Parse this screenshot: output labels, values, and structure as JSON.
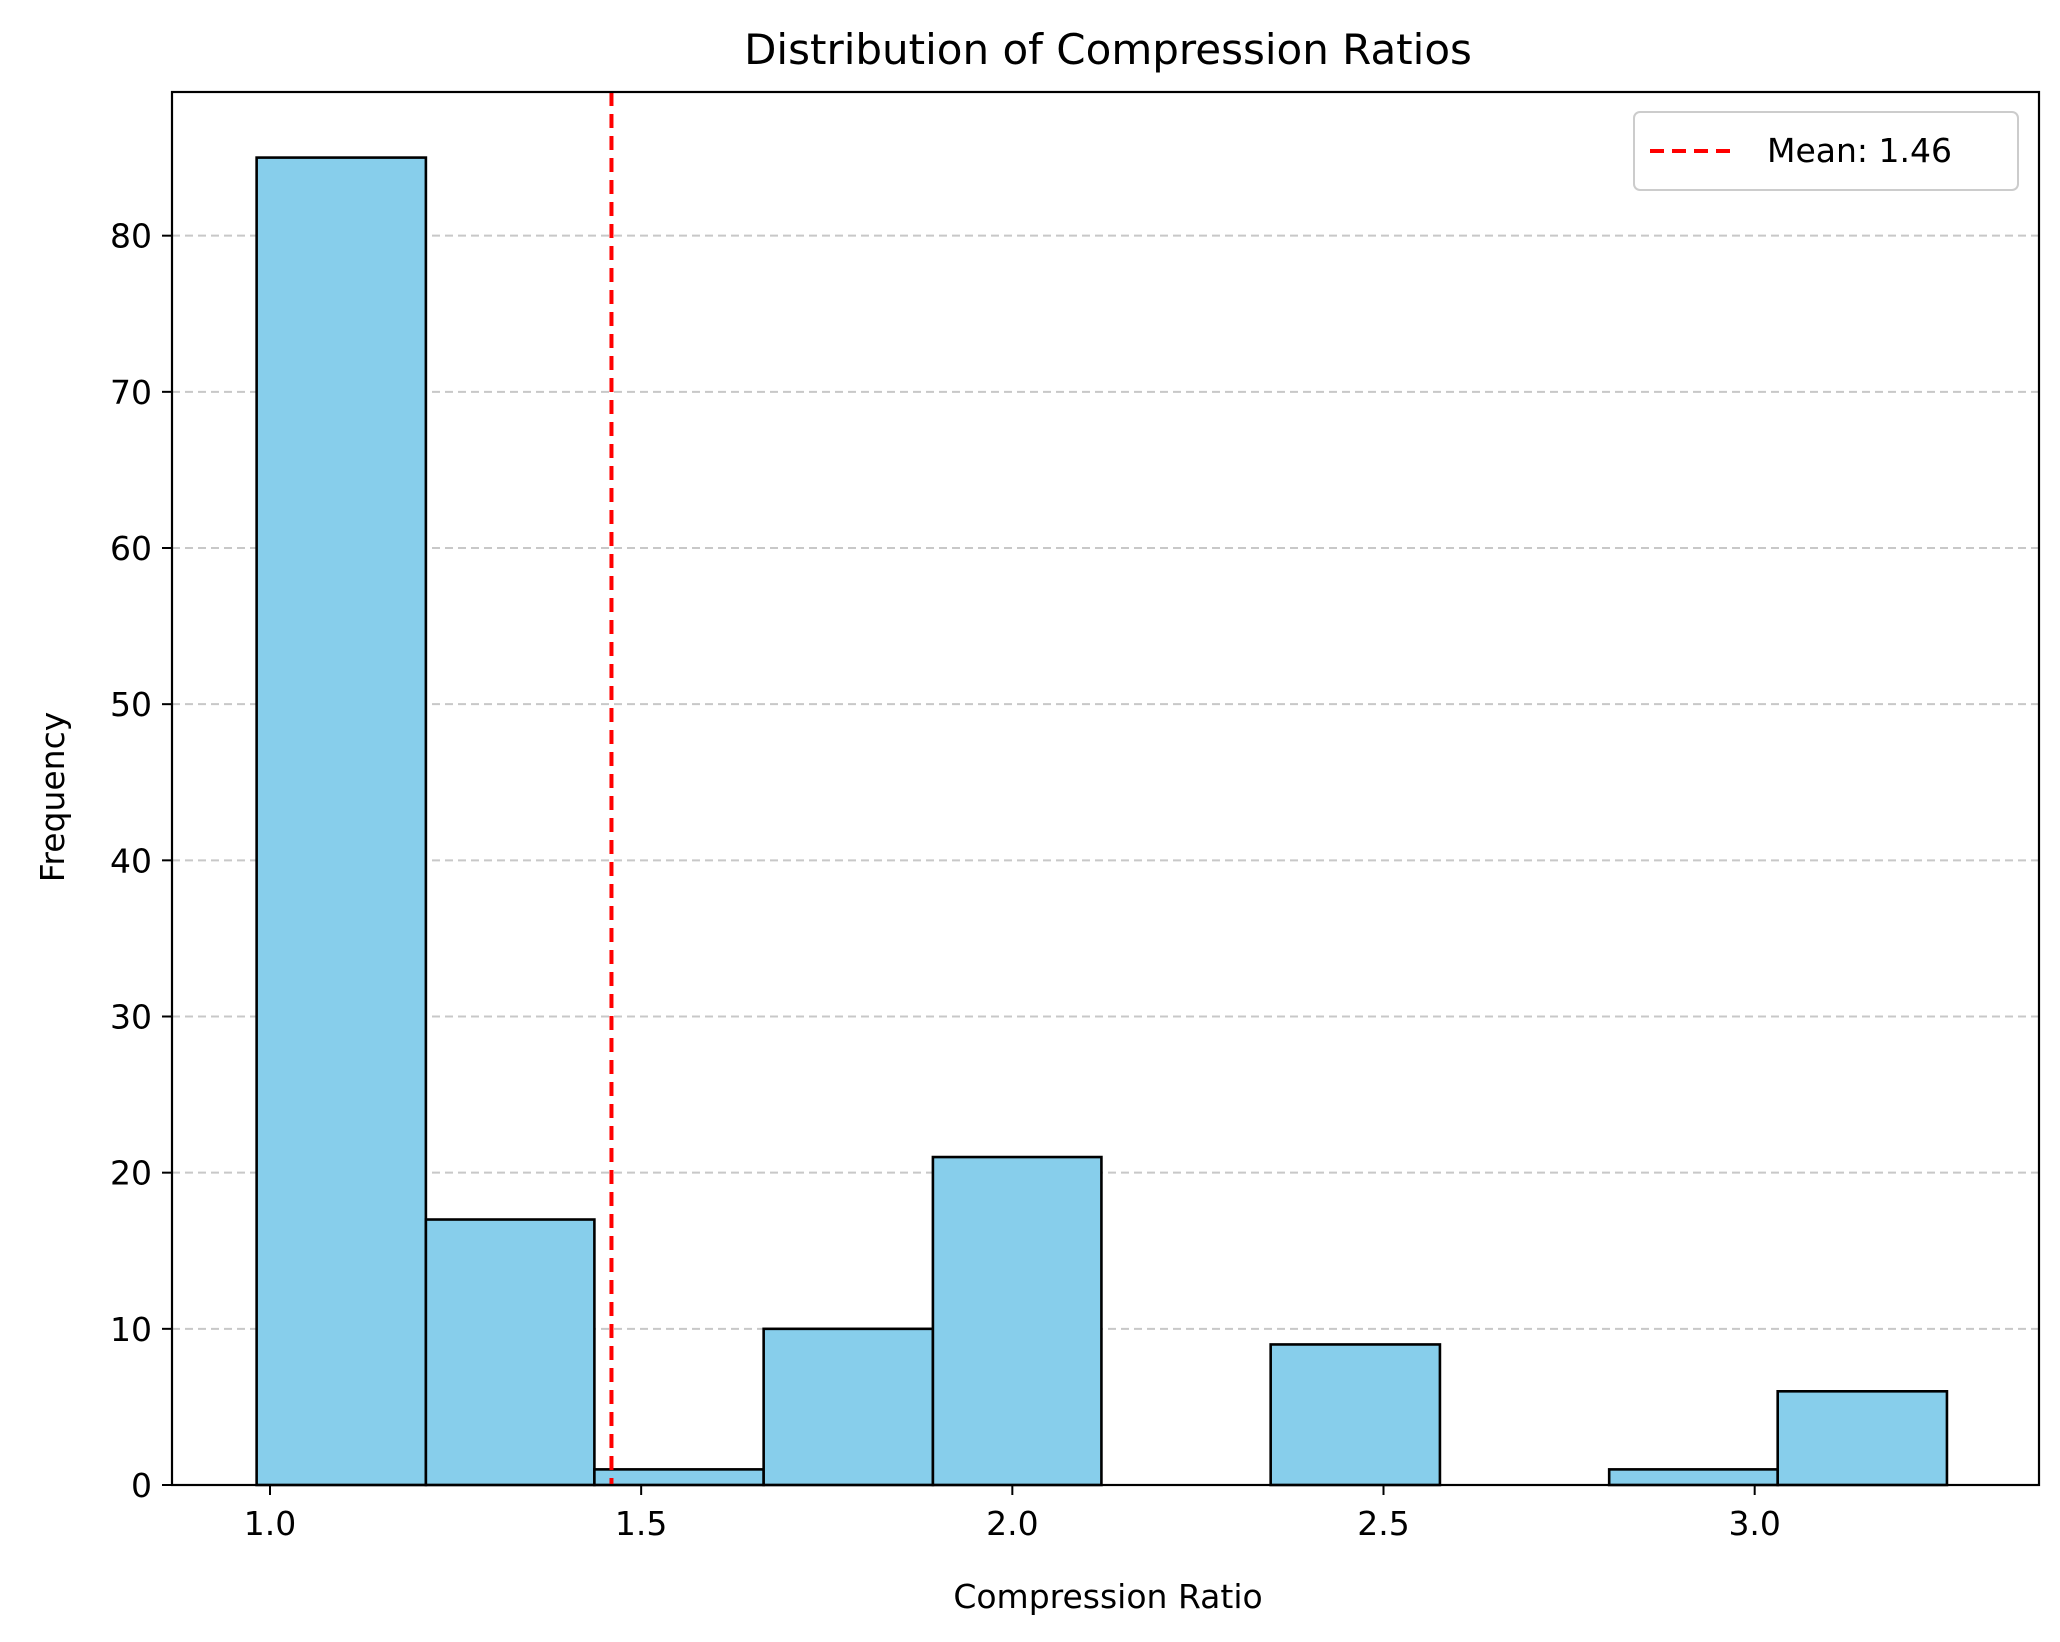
{
  "chart_data": {
    "type": "bar",
    "subtype": "histogram",
    "title": "Distribution of Compression Ratios",
    "xlabel": "Compression Ratio",
    "ylabel": "Frequency",
    "xlim": [
      0.868,
      3.383
    ],
    "ylim": [
      0,
      89.2
    ],
    "xticks": [
      1.0,
      1.5,
      2.0,
      2.5,
      3.0
    ],
    "xtick_labels": [
      "1.0",
      "1.5",
      "2.0",
      "2.5",
      "3.0"
    ],
    "yticks": [
      0,
      10,
      20,
      30,
      40,
      50,
      60,
      70,
      80
    ],
    "ytick_labels": [
      "0",
      "10",
      "20",
      "30",
      "40",
      "50",
      "60",
      "70",
      "80"
    ],
    "bin_edges": [
      0.982,
      1.21,
      1.437,
      1.665,
      1.893,
      2.12,
      2.348,
      2.576,
      2.804,
      3.031,
      3.259
    ],
    "values": [
      85,
      17,
      1,
      10,
      21,
      0,
      9,
      0,
      1,
      6
    ],
    "grid": {
      "axis": "y",
      "style": "dashed"
    },
    "bar_color": "#87ceeb",
    "bar_edge_color": "#000000",
    "mean_line": {
      "x": 1.46,
      "color": "#ff0000",
      "style": "dashed",
      "label": "Mean: 1.46"
    },
    "legend": {
      "placement": "top-right",
      "entries": [
        "Mean: 1.46"
      ]
    }
  }
}
